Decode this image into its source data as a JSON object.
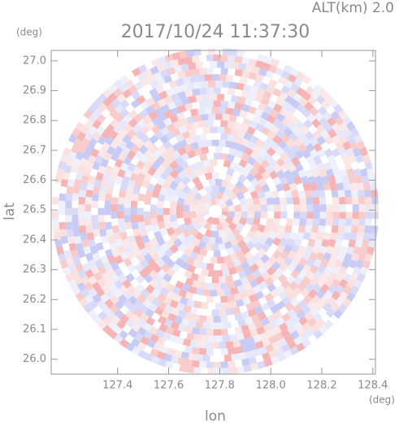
{
  "chart_data": {
    "type": "radar-ppi",
    "title": "2017/10/24 11:37:30",
    "altitude_label": "ALT(km) 2.0",
    "x_unit": "(deg)",
    "y_unit": "(deg)",
    "x_label": "lon",
    "y_label": "lat",
    "xlim": [
      127.14,
      128.41
    ],
    "ylim": [
      25.95,
      27.035
    ],
    "xticks": [
      {
        "value": 127.4,
        "label": "127.4"
      },
      {
        "value": 127.6,
        "label": "127.6"
      },
      {
        "value": 127.8,
        "label": "127.8"
      },
      {
        "value": 128.0,
        "label": "128.0"
      },
      {
        "value": 128.2,
        "label": "128.2"
      },
      {
        "value": 128.4,
        "label": "128.4"
      }
    ],
    "yticks": [
      {
        "value": 26.0,
        "label": "26.0"
      },
      {
        "value": 26.1,
        "label": "26.1"
      },
      {
        "value": 26.2,
        "label": "26.2"
      },
      {
        "value": 26.3,
        "label": "26.3"
      },
      {
        "value": 26.4,
        "label": "26.4"
      },
      {
        "value": 26.5,
        "label": "26.5"
      },
      {
        "value": 26.6,
        "label": "26.6"
      },
      {
        "value": 26.7,
        "label": "26.7"
      },
      {
        "value": 26.8,
        "label": "26.8"
      },
      {
        "value": 26.9,
        "label": "26.9"
      },
      {
        "value": 27.0,
        "label": "27.0"
      }
    ]
  }
}
